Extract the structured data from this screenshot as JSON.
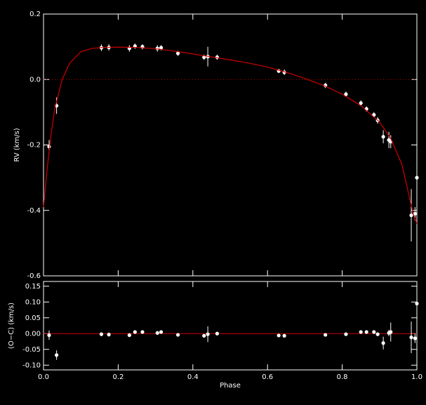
{
  "chart_data": [
    {
      "type": "scatter",
      "ylabel": "RV (km/s)",
      "xlim": [
        0,
        1
      ],
      "ylim": [
        -0.6,
        0.2
      ],
      "xticks": [
        0,
        0.2,
        0.4,
        0.6,
        0.8,
        1
      ],
      "show_xtick_labels": false,
      "yticks": [
        {
          "value": -0.6,
          "label": "-0.6"
        },
        {
          "value": -0.4,
          "label": "-0.4"
        },
        {
          "value": -0.2,
          "label": "-0.2"
        },
        {
          "value": 0,
          "label": "0.0"
        },
        {
          "value": 0.2,
          "label": "0.2"
        }
      ],
      "hline": {
        "value": 0,
        "color": "#c00000",
        "style": "dotted"
      },
      "series": [
        {
          "color": "#ffffff",
          "marker": "point",
          "x": [
            0.015,
            0.035,
            0.155,
            0.175,
            0.23,
            0.245,
            0.265,
            0.305,
            0.315,
            0.36,
            0.43,
            0.44,
            0.465,
            0.63,
            0.645,
            0.755,
            0.81,
            0.85,
            0.865,
            0.885,
            0.895,
            0.91,
            0.925,
            0.93,
            0.985,
            0.995,
            1.0
          ],
          "values": [
            -0.205,
            -0.08,
            0.097,
            0.098,
            0.095,
            0.102,
            0.1,
            0.095,
            0.097,
            0.08,
            0.068,
            0.07,
            0.068,
            0.026,
            0.022,
            -0.018,
            -0.045,
            -0.072,
            -0.09,
            -0.108,
            -0.125,
            -0.175,
            -0.185,
            -0.19,
            -0.415,
            -0.41,
            -0.3
          ],
          "errors": [
            0.02,
            0.025,
            0.01,
            0.01,
            0.01,
            0.008,
            0.008,
            0.01,
            0.008,
            0.008,
            0.008,
            0.03,
            0.008,
            0.006,
            0.008,
            0.008,
            0.008,
            0.008,
            0.008,
            0.008,
            0.01,
            0.02,
            0.025,
            0.02,
            0.08,
            0.02,
            0.02
          ]
        },
        {
          "color": "#d00000",
          "marker": "line",
          "x": [
            0,
            0.01,
            0.02,
            0.03,
            0.05,
            0.07,
            0.1,
            0.13,
            0.16,
            0.2,
            0.25,
            0.3,
            0.35,
            0.4,
            0.45,
            0.5,
            0.55,
            0.6,
            0.65,
            0.7,
            0.75,
            0.8,
            0.85,
            0.9,
            0.93,
            0.96,
            0.98,
            0.99,
            1.0
          ],
          "values": [
            -0.39,
            -0.27,
            -0.17,
            -0.09,
            0.0,
            0.05,
            0.085,
            0.095,
            0.098,
            0.099,
            0.098,
            0.094,
            0.087,
            0.078,
            0.069,
            0.06,
            0.05,
            0.038,
            0.022,
            0.003,
            -0.018,
            -0.045,
            -0.08,
            -0.13,
            -0.18,
            -0.26,
            -0.36,
            -0.41,
            -0.44
          ]
        }
      ]
    },
    {
      "type": "scatter",
      "xlabel": "Phase",
      "ylabel": "(O−C) (km/s)",
      "xlim": [
        0,
        1
      ],
      "ylim": [
        -0.115,
        0.165
      ],
      "xticks": [
        {
          "value": 0,
          "label": "0.0"
        },
        0.2,
        0.4,
        0.6,
        0.8,
        {
          "value": 1,
          "label": "1.0"
        }
      ],
      "show_xtick_labels": true,
      "yticks": [
        {
          "value": -0.1,
          "label": "-0.10"
        },
        -0.05,
        {
          "value": 0,
          "label": "0.00"
        },
        0.05,
        {
          "value": 0.1,
          "label": "0.10"
        },
        0.15
      ],
      "hline": {
        "value": 0,
        "color": "#d00000",
        "style": "solid"
      },
      "series": [
        {
          "color": "#ffffff",
          "marker": "point",
          "x": [
            0.015,
            0.035,
            0.155,
            0.175,
            0.23,
            0.245,
            0.265,
            0.305,
            0.315,
            0.36,
            0.43,
            0.44,
            0.465,
            0.63,
            0.645,
            0.755,
            0.81,
            0.85,
            0.865,
            0.885,
            0.895,
            0.91,
            0.925,
            0.93,
            0.985,
            0.995,
            1.0
          ],
          "values": [
            -0.005,
            -0.068,
            -0.002,
            -0.003,
            -0.005,
            0.005,
            0.005,
            0.002,
            0.005,
            -0.004,
            -0.007,
            -0.002,
            0.0,
            -0.006,
            -0.007,
            -0.004,
            -0.002,
            0.005,
            0.005,
            0.005,
            -0.002,
            -0.03,
            0.002,
            0.005,
            -0.012,
            -0.015,
            0.095
          ],
          "errors": [
            0.015,
            0.015,
            0.006,
            0.006,
            0.006,
            0.005,
            0.005,
            0.006,
            0.005,
            0.005,
            0.005,
            0.025,
            0.005,
            0.004,
            0.005,
            0.005,
            0.005,
            0.005,
            0.005,
            0.005,
            0.006,
            0.02,
            0.01,
            0.03,
            0.05,
            0.015,
            0.015
          ]
        }
      ]
    }
  ]
}
